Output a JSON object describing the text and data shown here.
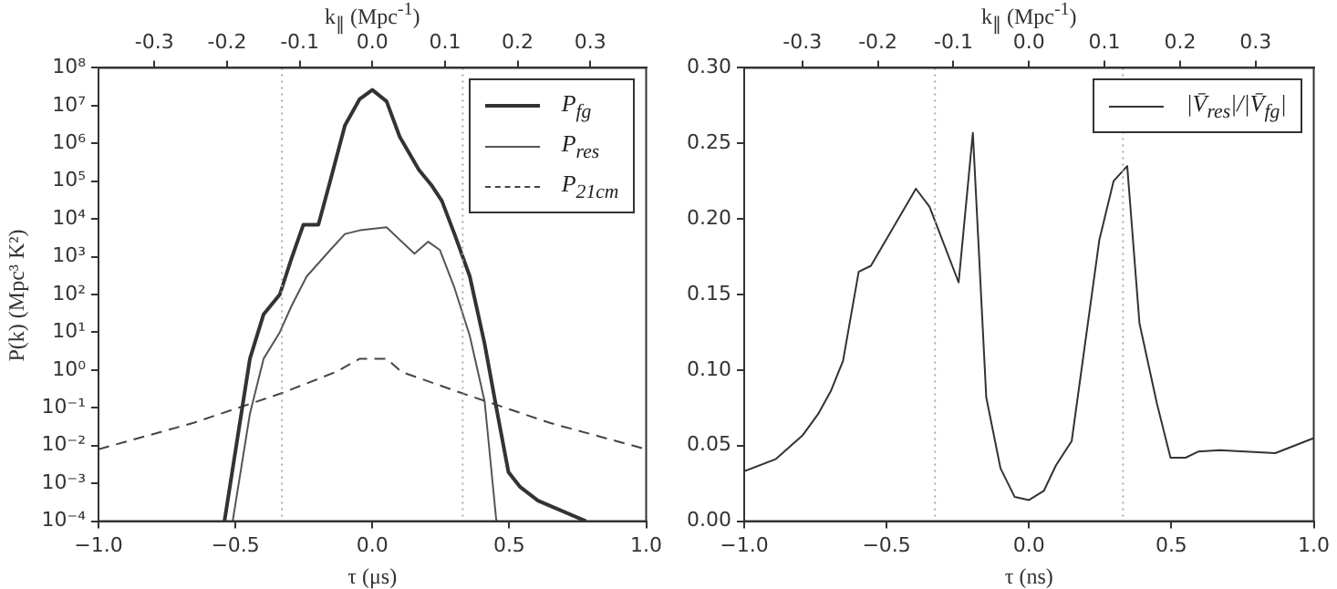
{
  "chart_data": [
    {
      "type": "line",
      "xlabel": "τ (μs)",
      "ylabel": "P(k)  (Mpc³ K²)",
      "x2label": "k$_{∥}$ (Mpc$^{-1}$)",
      "log": "y",
      "grid": false,
      "legend": "top right",
      "marker": "none",
      "xlim": [
        -1,
        1
      ],
      "xticks": [
        {
          "value": -1,
          "label": "−1.0"
        },
        {
          "value": -0.5,
          "label": "−0.5"
        },
        {
          "value": 0,
          "label": "0.0"
        },
        {
          "value": 0.5,
          "label": "0.5"
        },
        {
          "value": 1,
          "label": "1.0"
        }
      ],
      "x2lim": [
        -0.377,
        0.377
      ],
      "x2ticks": [
        {
          "value": -0.3,
          "label": "-0.3"
        },
        {
          "value": -0.2,
          "label": "-0.2"
        },
        {
          "value": -0.1,
          "label": "-0.1"
        },
        {
          "value": 0,
          "label": "0.0"
        },
        {
          "value": 0.1,
          "label": "0.1"
        },
        {
          "value": 0.2,
          "label": "0.2"
        },
        {
          "value": 0.3,
          "label": "0.3"
        }
      ],
      "ylim": [
        0.0001,
        100000000
      ],
      "yticks": [
        {
          "value": 0.0001,
          "label": "10⁻⁴"
        },
        {
          "value": 0.001,
          "label": "10⁻³"
        },
        {
          "value": 0.01,
          "label": "10⁻²"
        },
        {
          "value": 0.1,
          "label": "10⁻¹"
        },
        {
          "value": 1,
          "label": "10⁰"
        },
        {
          "value": 10,
          "label": "10¹"
        },
        {
          "value": 100,
          "label": "10²"
        },
        {
          "value": 1000,
          "label": "10³"
        },
        {
          "value": 10000,
          "label": "10⁴"
        },
        {
          "value": 100000,
          "label": "10⁵"
        },
        {
          "value": 1000000,
          "label": "10⁶"
        },
        {
          "value": 10000000,
          "label": "10⁷"
        },
        {
          "value": 100000000,
          "label": "10⁸"
        }
      ],
      "ref_lines": [
        {
          "axis": "x",
          "value": -0.33,
          "color": "#aaaaaa",
          "line_style": "dotted"
        },
        {
          "axis": "x",
          "value": 0.33,
          "color": "#aaaaaa",
          "line_style": "dotted"
        }
      ],
      "series": [
        {
          "name": "P$_{fg}$",
          "color": "#333333",
          "line_style": "solid",
          "x": [
            -0.54,
            -0.447,
            -0.397,
            -0.338,
            -0.295,
            -0.252,
            -0.197,
            -0.154,
            -0.1,
            -0.046,
            0,
            0.052,
            0.1,
            0.17,
            0.215,
            0.254,
            0.3,
            0.356,
            0.41,
            0.453,
            0.497,
            0.54,
            0.605,
            0.78
          ],
          "values": [
            0.0001,
            2,
            30,
            100,
            900,
            7000,
            7000,
            100000,
            3000000,
            15000000,
            26000000,
            13000000,
            1500000,
            200000,
            80000,
            30000,
            4000,
            300,
            5,
            0.1,
            0.002,
            0.0008,
            0.00035,
            0.0001
          ]
        },
        {
          "name": "P$_{res}$",
          "color": "#555555",
          "line_style": "solid",
          "x": [
            -0.51,
            -0.447,
            -0.397,
            -0.338,
            -0.295,
            -0.24,
            -0.154,
            -0.1,
            -0.046,
            0,
            0.052,
            0.154,
            0.204,
            0.247,
            0.3,
            0.356,
            0.41,
            0.453
          ],
          "values": [
            0.0001,
            0.07,
            2,
            10,
            50,
            300,
            1500,
            4000,
            5000,
            5500,
            6000,
            1200,
            2500,
            1500,
            150,
            8,
            0.15,
            0.0001
          ]
        },
        {
          "name": "P$_{21cm}$",
          "color": "#444444",
          "line_style": "dashed",
          "x": [
            -1,
            -0.653,
            -0.327,
            -0.132,
            -0.046,
            0.052,
            0.106,
            0.323,
            0.648,
            1
          ],
          "values": [
            0.008,
            0.04,
            0.25,
            0.9,
            2,
            2,
            0.9,
            0.25,
            0.04,
            0.008
          ]
        }
      ]
    },
    {
      "type": "line",
      "xlabel": "τ (ns)",
      "x2label": "k$_{∥}$ (Mpc$^{-1}$)",
      "grid": false,
      "legend": "top right",
      "marker": "none",
      "xlim": [
        -1,
        1
      ],
      "xticks": [
        {
          "value": -1,
          "label": "−1.0"
        },
        {
          "value": -0.5,
          "label": "−0.5"
        },
        {
          "value": 0,
          "label": "0.0"
        },
        {
          "value": 0.5,
          "label": "0.5"
        },
        {
          "value": 1,
          "label": "1.0"
        }
      ],
      "x2lim": [
        -0.377,
        0.377
      ],
      "x2ticks": [
        {
          "value": -0.3,
          "label": "-0.3"
        },
        {
          "value": -0.2,
          "label": "-0.2"
        },
        {
          "value": -0.1,
          "label": "-0.1"
        },
        {
          "value": 0,
          "label": "0.0"
        },
        {
          "value": 0.1,
          "label": "0.1"
        },
        {
          "value": 0.2,
          "label": "0.2"
        },
        {
          "value": 0.3,
          "label": "0.3"
        }
      ],
      "ylim": [
        0,
        0.3
      ],
      "yticks": [
        {
          "value": 0,
          "label": "0.00"
        },
        {
          "value": 0.05,
          "label": "0.05"
        },
        {
          "value": 0.1,
          "label": "0.10"
        },
        {
          "value": 0.15,
          "label": "0.15"
        },
        {
          "value": 0.2,
          "label": "0.20"
        },
        {
          "value": 0.25,
          "label": "0.25"
        },
        {
          "value": 0.3,
          "label": "0.30"
        }
      ],
      "ref_lines": [
        {
          "axis": "x",
          "value": -0.33,
          "color": "#aaaaaa",
          "line_style": "dotted"
        },
        {
          "axis": "x",
          "value": 0.33,
          "color": "#aaaaaa",
          "line_style": "dotted"
        }
      ],
      "series": [
        {
          "name": "|V̄$_{res}$|/|V̄$_{fg}$|",
          "color": "#333333",
          "line_style": "solid",
          "x": [
            -1,
            -0.89,
            -0.794,
            -0.74,
            -0.696,
            -0.653,
            -0.598,
            -0.555,
            -0.397,
            -0.349,
            -0.247,
            -0.197,
            -0.15,
            -0.1,
            -0.05,
            0,
            0.052,
            0.095,
            0.15,
            0.247,
            0.297,
            0.345,
            0.388,
            0.449,
            0.497,
            0.55,
            0.594,
            0.67,
            0.865,
            1
          ],
          "values": [
            0.033,
            0.041,
            0.057,
            0.071,
            0.086,
            0.106,
            0.165,
            0.169,
            0.22,
            0.208,
            0.158,
            0.257,
            0.082,
            0.035,
            0.016,
            0.014,
            0.02,
            0.037,
            0.053,
            0.186,
            0.225,
            0.235,
            0.131,
            0.078,
            0.042,
            0.042,
            0.046,
            0.047,
            0.045,
            0.055
          ]
        }
      ]
    }
  ]
}
